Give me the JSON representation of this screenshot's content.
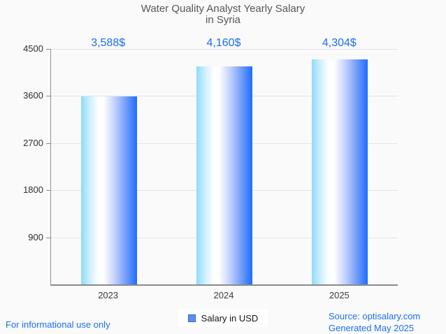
{
  "chart_data": {
    "type": "bar",
    "title": "Water Quality Analyst Yearly Salary in Syria",
    "title_lines": [
      "Water Quality Analyst Yearly Salary",
      "in Syria"
    ],
    "categories": [
      "2023",
      "2024",
      "2025"
    ],
    "values": [
      3588,
      4160,
      4304
    ],
    "value_labels": [
      "3,588$",
      "4,160$",
      "4,304$"
    ],
    "xlabel": "",
    "ylabel": "",
    "ylim": [
      0,
      4500
    ],
    "yticks": [
      4500,
      3600,
      2700,
      1800,
      900
    ],
    "grid": true,
    "legend": [
      "Salary in USD"
    ],
    "legend_position": "bottom-center"
  },
  "footer": {
    "left": "For informational use only",
    "source": "Source: optisalary.com",
    "generated": "Generated May 2025"
  },
  "colors": {
    "accent_blue": "#1b6ef2",
    "title_gray": "#55565a",
    "axis_text": "#2f2f2f",
    "axis_line": "#8a8a8a",
    "gridline": "#e4e4e4",
    "background": "#fafafa",
    "legend_marker_fill": "#5591ef",
    "legend_marker_border": "#3367c6",
    "bar_gradient": [
      "#8fdafc 0%",
      "#c8eefe 14%",
      "#ffffff 31%",
      "#ffffff 40%",
      "#c3d2fc 60%",
      "#7da2fa 78%",
      "#1d6dff 100%"
    ]
  }
}
